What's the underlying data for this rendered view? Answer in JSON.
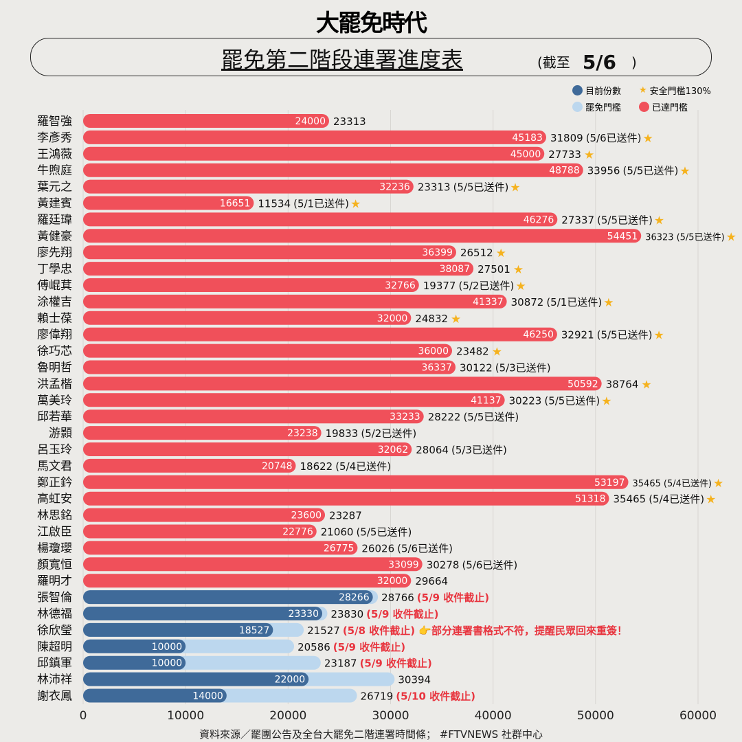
{
  "header": {
    "logo": "大罷免時代",
    "title": "罷免第二階段連署進度表",
    "asof_prefix": "(截至",
    "asof_date": "5/6",
    "asof_suffix": ")"
  },
  "legend": {
    "current": "目前份數",
    "safe": "安全門檻130%",
    "threshold": "罷免門檻",
    "reached": "已達門檻"
  },
  "colors": {
    "reached": "#f0505a",
    "current": "#3f6a99",
    "threshold": "#bcd7ee",
    "star": "#f5b21e",
    "note": "#e8353f"
  },
  "source": "資料來源／罷團公告及全台大罷免二階連署時間條； #FTVNEWS 社群中心",
  "chart_data": {
    "type": "bar",
    "orientation": "horizontal",
    "xlim": [
      0,
      60000
    ],
    "xticks": [
      "0",
      "10000",
      "20000",
      "30000",
      "40000",
      "50000",
      "60000"
    ],
    "rows": [
      {
        "name": "羅智強",
        "current": 24000,
        "threshold": 23313,
        "note": "",
        "star": false,
        "reached": true
      },
      {
        "name": "李彥秀",
        "current": 45183,
        "threshold": 31809,
        "note": "(5/6已送件)",
        "star": true,
        "reached": true
      },
      {
        "name": "王鴻薇",
        "current": 45000,
        "threshold": 27733,
        "note": "",
        "star": true,
        "reached": true
      },
      {
        "name": "牛煦庭",
        "current": 48788,
        "threshold": 33956,
        "note": "(5/5已送件)",
        "star": true,
        "reached": true
      },
      {
        "name": "葉元之",
        "current": 32236,
        "threshold": 23313,
        "note": "(5/5已送件)",
        "star": true,
        "reached": true
      },
      {
        "name": "黃建賓",
        "current": 16651,
        "threshold": 11534,
        "note": "(5/1已送件)",
        "star": true,
        "reached": true
      },
      {
        "name": "羅廷瑋",
        "current": 46276,
        "threshold": 27337,
        "note": "(5/5已送件)",
        "star": true,
        "reached": true
      },
      {
        "name": "黃健豪",
        "current": 54451,
        "threshold": 36323,
        "note": "(5/5已送件)",
        "star": true,
        "reached": true
      },
      {
        "name": "廖先翔",
        "current": 36399,
        "threshold": 26512,
        "note": "",
        "star": true,
        "reached": true
      },
      {
        "name": "丁學忠",
        "current": 38087,
        "threshold": 27501,
        "note": "",
        "star": true,
        "reached": true
      },
      {
        "name": "傅崐萁",
        "current": 32766,
        "threshold": 19377,
        "note": "(5/2已送件)",
        "star": true,
        "reached": true
      },
      {
        "name": "涂權吉",
        "current": 41337,
        "threshold": 30872,
        "note": "(5/1已送件)",
        "star": true,
        "reached": true
      },
      {
        "name": "賴士葆",
        "current": 32000,
        "threshold": 24832,
        "note": "",
        "star": true,
        "reached": true
      },
      {
        "name": "廖偉翔",
        "current": 46250,
        "threshold": 32921,
        "note": "(5/5已送件)",
        "star": true,
        "reached": true
      },
      {
        "name": "徐巧芯",
        "current": 36000,
        "threshold": 23482,
        "note": "",
        "star": true,
        "reached": true
      },
      {
        "name": "魯明哲",
        "current": 36337,
        "threshold": 30122,
        "note": "(5/3已送件)",
        "star": false,
        "reached": true
      },
      {
        "name": "洪孟楷",
        "current": 50592,
        "threshold": 38764,
        "note": "",
        "star": true,
        "reached": true
      },
      {
        "name": "萬美玲",
        "current": 41137,
        "threshold": 30223,
        "note": "(5/5已送件)",
        "star": true,
        "reached": true
      },
      {
        "name": "邱若華",
        "current": 33233,
        "threshold": 28222,
        "note": "(5/5已送件)",
        "star": false,
        "reached": true
      },
      {
        "name": "游顥",
        "current": 23238,
        "threshold": 19833,
        "note": "(5/2已送件)",
        "star": false,
        "reached": true
      },
      {
        "name": "呂玉玲",
        "current": 32062,
        "threshold": 28064,
        "note": "(5/3已送件)",
        "star": false,
        "reached": true
      },
      {
        "name": "馬文君",
        "current": 20748,
        "threshold": 18622,
        "note": "(5/4已送件)",
        "star": false,
        "reached": true
      },
      {
        "name": "鄭正鈐",
        "current": 53197,
        "threshold": 35465,
        "note": "(5/4已送件)",
        "star": true,
        "reached": true
      },
      {
        "name": "高虹安",
        "current": 51318,
        "threshold": 35465,
        "note": "(5/4已送件)",
        "star": true,
        "reached": true
      },
      {
        "name": "林思銘",
        "current": 23600,
        "threshold": 23287,
        "note": "",
        "star": false,
        "reached": true
      },
      {
        "name": "江啟臣",
        "current": 22776,
        "threshold": 21060,
        "note": "(5/5已送件)",
        "star": false,
        "reached": true
      },
      {
        "name": "楊瓊瓔",
        "current": 26775,
        "threshold": 26026,
        "note": "(5/6已送件)",
        "star": false,
        "reached": true
      },
      {
        "name": "顏寬恒",
        "current": 33099,
        "threshold": 30278,
        "note": "(5/6已送件)",
        "star": false,
        "reached": true
      },
      {
        "name": "羅明才",
        "current": 32000,
        "threshold": 29664,
        "note": "",
        "star": false,
        "reached": true
      },
      {
        "name": "張智倫",
        "current": 28266,
        "threshold": 28766,
        "note": "(5/9 收件截止)",
        "star": false,
        "reached": false
      },
      {
        "name": "林德福",
        "current": 23330,
        "threshold": 23830,
        "note": "(5/9 收件截止)",
        "star": false,
        "reached": false
      },
      {
        "name": "徐欣瑩",
        "current": 18527,
        "threshold": 21527,
        "note": "(5/8 收件截止) 👉部分連署書格式不符，提醒民眾回來重簽！",
        "star": false,
        "reached": false
      },
      {
        "name": "陳超明",
        "current": 10000,
        "threshold": 20586,
        "note": "(5/9 收件截止)",
        "star": false,
        "reached": false
      },
      {
        "name": "邱鎮軍",
        "current": 10000,
        "threshold": 23187,
        "note": "(5/9 收件截止)",
        "star": false,
        "reached": false
      },
      {
        "name": "林沛祥",
        "current": 22000,
        "threshold": 30394,
        "note": "",
        "star": false,
        "reached": false
      },
      {
        "name": "謝衣鳳",
        "current": 14000,
        "threshold": 26719,
        "note": "(5/10 收件截止)",
        "star": false,
        "reached": false
      }
    ]
  }
}
